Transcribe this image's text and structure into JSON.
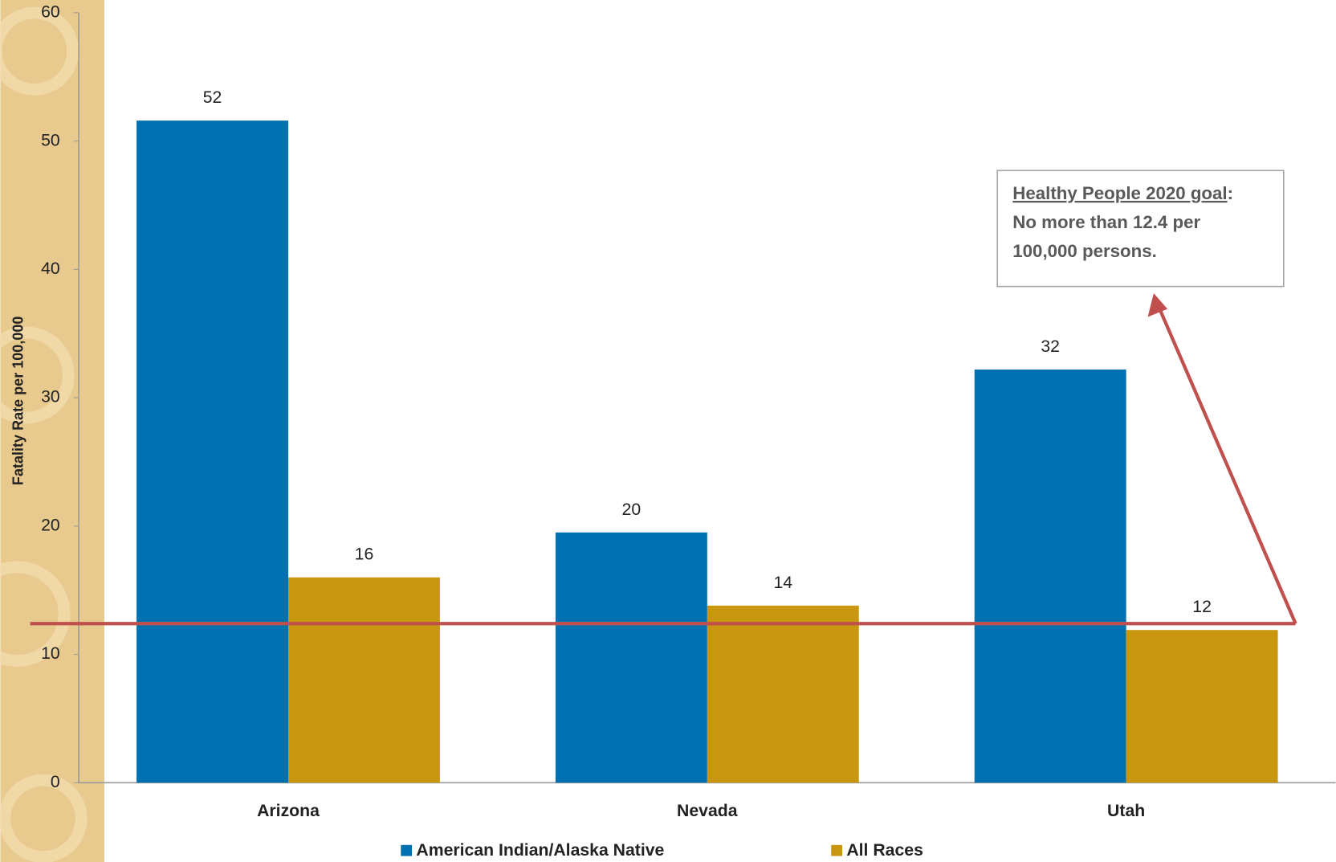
{
  "chart_data": {
    "type": "bar",
    "y_axis_label": "Fatality Rate per 100,000",
    "categories": [
      "Arizona",
      "Nevada",
      "Utah"
    ],
    "series": [
      {
        "name": "American Indian/Alaska Native",
        "color": "#0070b0",
        "values": [
          51.6,
          19.5,
          32.2
        ],
        "value_labels": [
          "52",
          "20",
          "32"
        ]
      },
      {
        "name": "All Races",
        "color": "#c8960f",
        "values": [
          16,
          13.8,
          11.9
        ],
        "value_labels": [
          "16",
          "14",
          "12"
        ]
      }
    ],
    "ylim": [
      0,
      60
    ],
    "yticks": [
      0,
      10,
      20,
      30,
      40,
      50,
      60
    ],
    "goal_line": {
      "value": 12.4,
      "color": "#c0504d"
    },
    "annotation": {
      "link_text": "Healthy People 2020 goal",
      "after_link": ":",
      "lines": [
        "No more than 12.4 per",
        "100,000 persons."
      ]
    }
  }
}
